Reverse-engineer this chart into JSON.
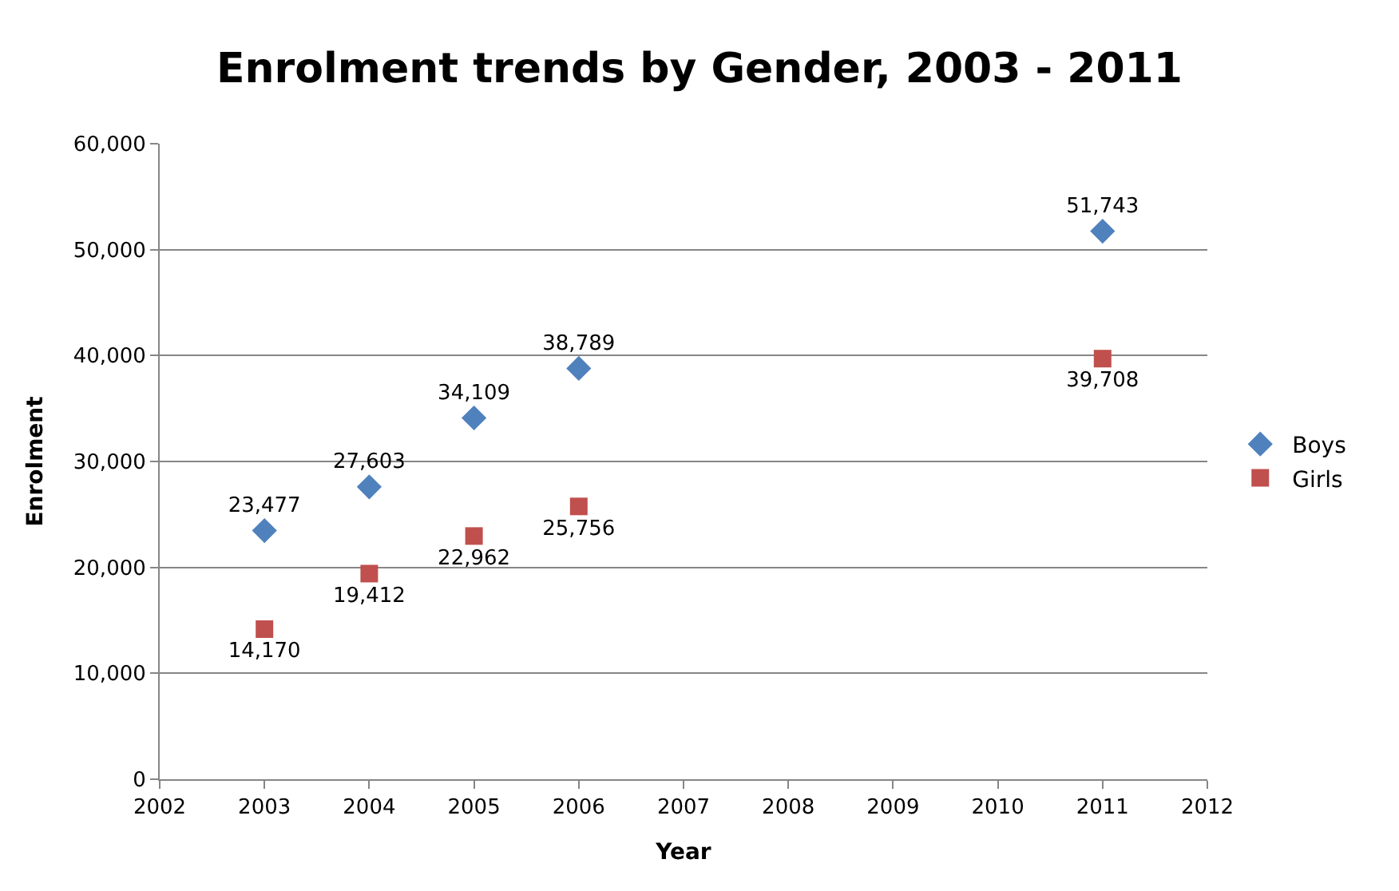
{
  "chart_data": {
    "type": "scatter",
    "title": "Enrolment trends by Gender, 2003 - 2011",
    "xlabel": "Year",
    "ylabel": "Enrolment",
    "x": [
      2003,
      2004,
      2005,
      2006,
      2011
    ],
    "series": [
      {
        "name": "Boys",
        "color": "#4f81bd",
        "marker": "diamond",
        "values": [
          23477,
          27603,
          34109,
          38789,
          51743
        ],
        "value_labels": [
          "23,477",
          "27,603",
          "34,109",
          "38,789",
          "51,743"
        ]
      },
      {
        "name": "Girls",
        "color": "#c0504d",
        "marker": "square",
        "values": [
          14170,
          19412,
          22962,
          25756,
          39708
        ],
        "value_labels": [
          "14,170",
          "19,412",
          "22,962",
          "25,756",
          "39,708"
        ]
      }
    ],
    "xlim": [
      2002,
      2012
    ],
    "xticks": [
      2002,
      2003,
      2004,
      2005,
      2006,
      2007,
      2008,
      2009,
      2010,
      2011,
      2012
    ],
    "ylim": [
      0,
      60000
    ],
    "yticks": [
      0,
      {
        "value": 10000,
        "label": "10,000"
      },
      {
        "value": 20000,
        "label": "20,000"
      },
      {
        "value": 30000,
        "label": "30,000"
      },
      {
        "value": 40000,
        "label": "40,000"
      },
      {
        "value": 50000,
        "label": "50,000"
      },
      {
        "value": 60000,
        "label": "60,000"
      }
    ],
    "grid": "y",
    "legend": "right"
  }
}
